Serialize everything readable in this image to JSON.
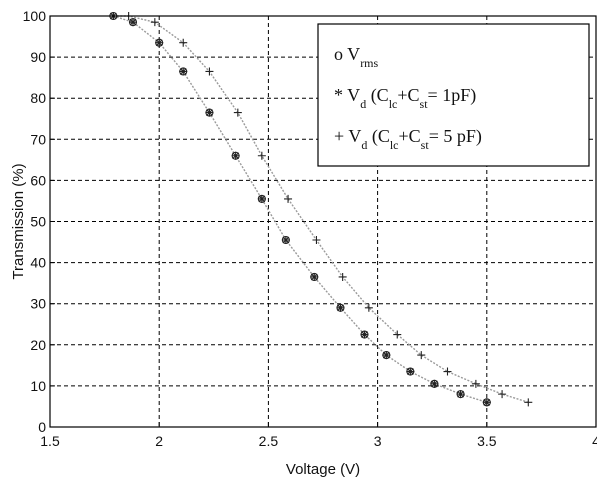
{
  "chart_data": {
    "type": "scatter",
    "xlabel": "Voltage (V)",
    "ylabel": "Transmission (%)",
    "xlim": [
      1.5,
      4
    ],
    "ylim": [
      0,
      100
    ],
    "xticks": [
      "1.5",
      "2",
      "2.5",
      "3",
      "3.5",
      "4"
    ],
    "yticks": [
      "0",
      "10",
      "20",
      "30",
      "40",
      "50",
      "60",
      "70",
      "80",
      "90",
      "100"
    ],
    "grid": true,
    "legend_position": "top-right",
    "legend": [
      {
        "marker": "o",
        "main": "V",
        "sub": "rms",
        "rest": ""
      },
      {
        "marker": "*",
        "main": "V",
        "sub": "d",
        "rest": "(C",
        "sub2": "lc",
        "rest2": "+C",
        "sub3": "st",
        "rest3": "= 1pF)"
      },
      {
        "marker": "+",
        "main": "V",
        "sub": "d",
        "rest": "(C",
        "sub2": "lc",
        "rest2": "+C",
        "sub3": "st",
        "rest3": "= 5 pF)"
      }
    ],
    "series": [
      {
        "marker": "o",
        "x": [
          1.79,
          1.88,
          2.0,
          2.11,
          2.23,
          2.35,
          2.47,
          2.58,
          2.71,
          2.83,
          2.94,
          3.04,
          3.15,
          3.26,
          3.38,
          3.5
        ],
        "y": [
          100,
          98.5,
          93.5,
          86.5,
          76.5,
          66,
          55.5,
          45.5,
          36.5,
          29,
          22.5,
          17.5,
          13.5,
          10.5,
          8,
          6
        ]
      },
      {
        "marker": "*",
        "x": [
          1.79,
          1.88,
          2.0,
          2.11,
          2.23,
          2.35,
          2.47,
          2.58,
          2.71,
          2.83,
          2.94,
          3.04,
          3.15,
          3.26,
          3.38,
          3.5
        ],
        "y": [
          100,
          98.5,
          93.5,
          86.5,
          76.5,
          66,
          55.5,
          45.5,
          36.5,
          29,
          22.5,
          17.5,
          13.5,
          10.5,
          8,
          6
        ]
      },
      {
        "marker": "+",
        "x": [
          1.79,
          1.86,
          1.98,
          2.11,
          2.23,
          2.36,
          2.47,
          2.59,
          2.72,
          2.84,
          2.96,
          3.09,
          3.2,
          3.32,
          3.45,
          3.57,
          3.69
        ],
        "y": [
          100,
          100,
          98.5,
          93.5,
          86.5,
          76.5,
          66,
          55.5,
          45.5,
          36.5,
          29,
          22.5,
          17.5,
          13.5,
          10.5,
          8,
          6
        ]
      }
    ]
  }
}
